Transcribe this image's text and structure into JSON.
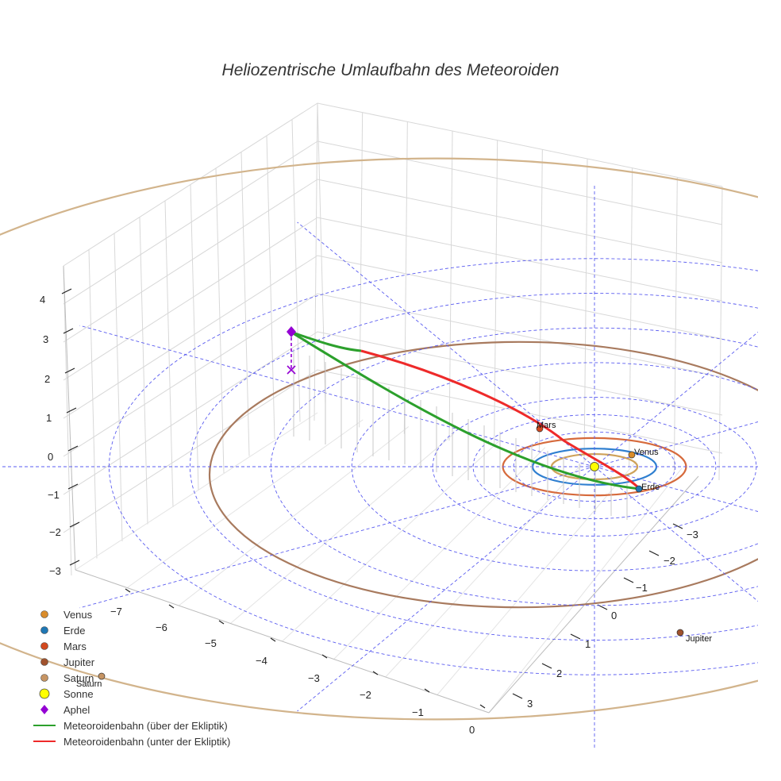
{
  "chart_data": {
    "type": "scatter3d",
    "title": "Heliozentrische Umlaufbahn des Meteoroiden",
    "axes": {
      "x": {
        "ticks": [
          "−7",
          "−6",
          "−5",
          "−4",
          "−3",
          "−2",
          "−1",
          "0"
        ],
        "range": [
          -7.5,
          0.3
        ]
      },
      "y": {
        "ticks": [
          "−3",
          "−2",
          "−1",
          "0",
          "1",
          "2",
          "3"
        ],
        "range": [
          -3.5,
          3.5
        ]
      },
      "z": {
        "ticks": [
          "−3",
          "−2",
          "−1",
          "0",
          "1",
          "2",
          "3",
          "4"
        ],
        "range": [
          -3.2,
          4.5
        ]
      }
    },
    "bodies": [
      {
        "name": "Venus",
        "label": "Venus",
        "color": "#d98c2b",
        "orbit_color": "#cfa25a"
      },
      {
        "name": "Erde",
        "label": "Erde",
        "color": "#1f77b4",
        "orbit_color": "#2f7fd0"
      },
      {
        "name": "Mars",
        "label": "Mars",
        "color": "#d2491f",
        "orbit_color": "#d66a3c"
      },
      {
        "name": "Jupiter",
        "label": "Jupiter",
        "color": "#a0522d",
        "orbit_color": "#a87a5e"
      },
      {
        "name": "Saturn",
        "label": "Saturn",
        "color": "#c69463",
        "orbit_color": "#d2b48c"
      }
    ],
    "sun": {
      "name": "Sonne",
      "color": "#ffff00"
    },
    "aphel": {
      "name": "Aphel",
      "color": "#9400d3"
    },
    "meteoroid_orbit": {
      "above_name": "Meteoroidenbahn (über der Ekliptik)",
      "below_name": "Meteoroidenbahn (unter der Ekliptik)",
      "above_color": "#2ca02c",
      "below_color": "#ee2a2a",
      "aphelion_AU": 7.2,
      "perihelion_AU": 0.55
    }
  },
  "legend": [
    {
      "name": "Venus",
      "color": "#d98c2b",
      "symbol": "circle"
    },
    {
      "name": "Erde",
      "color": "#1f77b4",
      "symbol": "circle"
    },
    {
      "name": "Mars",
      "color": "#d2491f",
      "symbol": "circle"
    },
    {
      "name": "Jupiter",
      "color": "#a0522d",
      "symbol": "circle"
    },
    {
      "name": "Saturn",
      "color": "#c69463",
      "symbol": "circle"
    },
    {
      "name": "Sonne",
      "color": "#ffff00",
      "symbol": "sun"
    },
    {
      "name": "Aphel",
      "color": "#9400d3",
      "symbol": "diamond"
    },
    {
      "name": "Meteoroidenbahn (über der Ekliptik)",
      "color": "#2ca02c",
      "symbol": "line"
    },
    {
      "name": "Meteoroidenbahn (unter der Ekliptik)",
      "color": "#ee2a2a",
      "symbol": "line"
    }
  ]
}
